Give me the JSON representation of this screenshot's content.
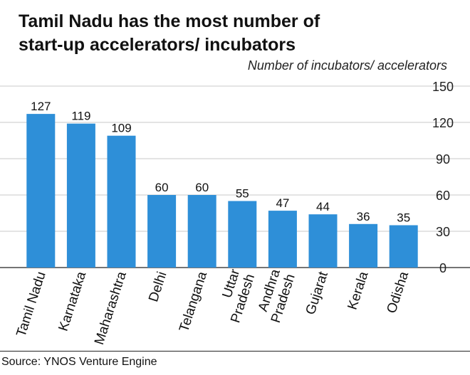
{
  "header": {
    "title_line1": "Tamil Nadu has the most number of",
    "title_line2": "start-up accelerators/ incubators"
  },
  "footer": {
    "source": "Source: YNOS Venture Engine"
  },
  "colors": {
    "bar": "#2e8fd8",
    "grid": "#c9c9c9",
    "axis": "#222222"
  },
  "chart_data": {
    "type": "bar",
    "title": "Tamil Nadu has the most number of start-up accelerators/ incubators",
    "ylabel": "Number of incubators/ accelerators",
    "categories": [
      [
        "Tamil Nadu"
      ],
      [
        "Karnataka"
      ],
      [
        "Maharashtra"
      ],
      [
        "Delhi"
      ],
      [
        "Telangana"
      ],
      [
        "Uttar",
        "Pradesh"
      ],
      [
        "Andhra",
        "Pradesh"
      ],
      [
        "Gujarat"
      ],
      [
        "Kerala"
      ],
      [
        "Odisha"
      ]
    ],
    "values": [
      127,
      119,
      109,
      60,
      60,
      55,
      47,
      44,
      36,
      35
    ],
    "ylim": [
      0,
      150
    ],
    "yticks": [
      0,
      30,
      60,
      90,
      120,
      150
    ],
    "yaxis_side": "right",
    "grid": true
  }
}
